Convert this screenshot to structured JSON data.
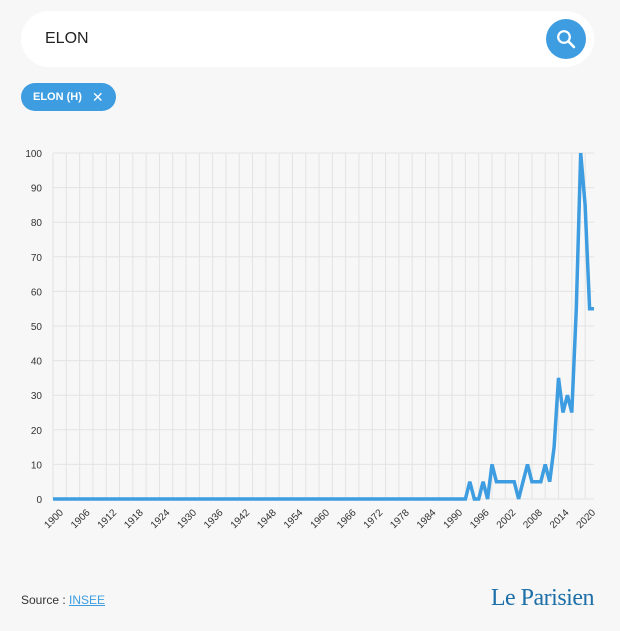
{
  "search": {
    "value": "ELON",
    "icon": "search-icon"
  },
  "filter_chip": {
    "label": "ELON (H)",
    "remove_symbol": "✕"
  },
  "colors": {
    "accent": "#3d9de0",
    "line": "#3d9de0",
    "grid": "#e3e3e3",
    "background": "#f7f7f7"
  },
  "footer": {
    "source_prefix": "Source : ",
    "source_link": "INSEE",
    "brand": "Le Parisien"
  },
  "chart_data": {
    "type": "line",
    "title": "",
    "xlabel": "",
    "ylabel": "",
    "xlim": [
      1900,
      2022
    ],
    "ylim": [
      0,
      100
    ],
    "grid": true,
    "x_ticks": [
      1900,
      1906,
      1912,
      1918,
      1924,
      1930,
      1936,
      1942,
      1948,
      1954,
      1960,
      1966,
      1972,
      1978,
      1984,
      1990,
      1996,
      2002,
      2008,
      2014,
      2020
    ],
    "y_ticks": [
      0,
      10,
      20,
      30,
      40,
      50,
      60,
      70,
      80,
      90,
      100
    ],
    "series": [
      {
        "name": "ELON (H)",
        "x": [
          1900,
          1993,
          1994,
          1995,
          1996,
          1997,
          1998,
          1999,
          2000,
          2001,
          2002,
          2003,
          2004,
          2005,
          2006,
          2007,
          2008,
          2009,
          2010,
          2011,
          2012,
          2013,
          2014,
          2015,
          2016,
          2017,
          2018,
          2019,
          2020,
          2021,
          2022
        ],
        "values": [
          0,
          0,
          5,
          0,
          0,
          5,
          0,
          10,
          5,
          5,
          5,
          5,
          5,
          0,
          5,
          10,
          5,
          5,
          5,
          10,
          5,
          15,
          35,
          25,
          30,
          25,
          55,
          100,
          85,
          55,
          55
        ]
      }
    ]
  }
}
